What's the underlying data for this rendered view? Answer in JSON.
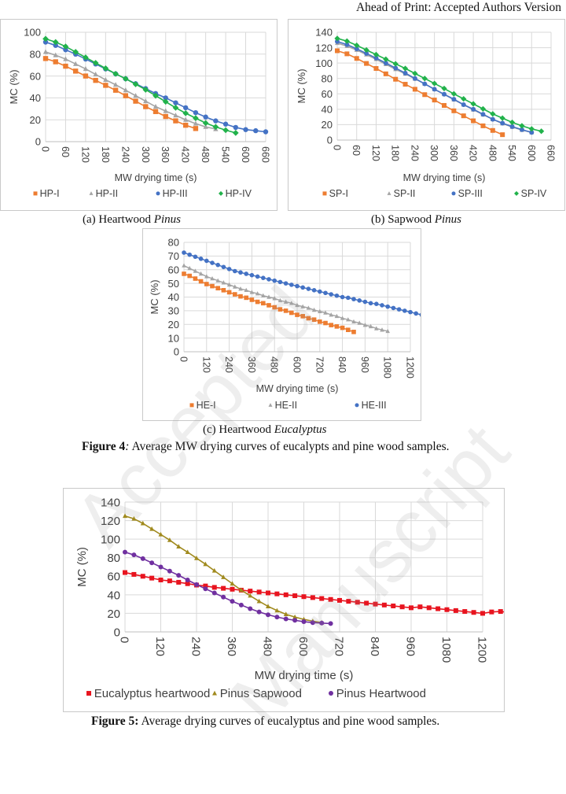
{
  "header": {
    "note": "Ahead of Print: Accepted Authors Version"
  },
  "watermark": {
    "text": "Accepted Manuscript"
  },
  "figure4": {
    "caption_label": "Figure 4",
    "caption_sep": ":",
    "caption_text": " Average MW drying curves of eucalypts and pine wood samples.",
    "subcaptions": [
      {
        "prefix": "(a) Heartwood ",
        "italic": "Pinus"
      },
      {
        "prefix": "(b) Sapwood ",
        "italic": "Pinus"
      },
      {
        "prefix": "(c) Heartwood ",
        "italic": "Eucalyptus"
      }
    ]
  },
  "figure5": {
    "caption_label": "Figure 5:",
    "caption_text": " Average drying curves of eucalyptus and pine wood samples."
  },
  "chart_data": [
    {
      "id": "a",
      "type": "line",
      "title": "",
      "xlabel": "MW drying time (s)",
      "ylabel": "MC (%)",
      "xlim": [
        0,
        660
      ],
      "ylim": [
        0,
        100
      ],
      "xticks": [
        0,
        60,
        120,
        180,
        240,
        300,
        360,
        420,
        480,
        540,
        600,
        660
      ],
      "yticks": [
        0,
        20,
        40,
        60,
        80,
        100
      ],
      "x_step": 30,
      "grid": true,
      "legend": "bottom",
      "series": [
        {
          "name": "HP-I",
          "color": "#ed7d31",
          "marker": "square",
          "values": [
            76,
            73,
            69,
            64.5,
            60,
            56,
            51.5,
            47,
            42,
            37,
            32,
            27.5,
            23,
            19,
            15,
            12
          ]
        },
        {
          "name": "HP-II",
          "color": "#a5a5a5",
          "marker": "triangle",
          "values": [
            82,
            79,
            75.5,
            71,
            66.5,
            61.5,
            56.5,
            52,
            47,
            42,
            37,
            32,
            28,
            24,
            20,
            16.5,
            13.5,
            11.5
          ]
        },
        {
          "name": "HP-III",
          "color": "#4472c4",
          "marker": "circle",
          "values": [
            91,
            88,
            84,
            80,
            75.5,
            71,
            66.5,
            62,
            57.5,
            53,
            48.5,
            44,
            40,
            35.5,
            31,
            26.5,
            22.5,
            19,
            16,
            13,
            11,
            10,
            9
          ]
        },
        {
          "name": "HP-IV",
          "color": "#21b24b",
          "marker": "diamond",
          "values": [
            94,
            91,
            87,
            82,
            77,
            72,
            67,
            62,
            57.5,
            52.5,
            47.5,
            42,
            36.5,
            31,
            26,
            21.5,
            17,
            13.5,
            10.5,
            8
          ]
        }
      ]
    },
    {
      "id": "b",
      "type": "line",
      "title": "",
      "xlabel": "MW drying time (s)",
      "ylabel": "MC (%)",
      "xlim": [
        0,
        660
      ],
      "ylim": [
        0,
        140
      ],
      "xticks": [
        0,
        60,
        120,
        180,
        240,
        300,
        360,
        420,
        480,
        540,
        600,
        660
      ],
      "yticks": [
        0,
        20,
        40,
        60,
        80,
        100,
        120,
        140
      ],
      "x_step": 30,
      "grid": true,
      "legend": "bottom",
      "series": [
        {
          "name": "SP-I",
          "color": "#ed7d31",
          "marker": "square",
          "values": [
            116,
            112,
            106,
            99.5,
            93,
            86,
            79,
            72.5,
            66,
            59,
            52,
            45,
            38,
            31.5,
            25,
            18.5,
            12.5,
            7
          ]
        },
        {
          "name": "SP-II",
          "color": "#a5a5a5",
          "marker": "triangle",
          "values": [
            126,
            122,
            117,
            111,
            105,
            98.5,
            92,
            86,
            79.5,
            73,
            66,
            59.5,
            52.5,
            46,
            39.5,
            33,
            27,
            21.5,
            17,
            13,
            10
          ]
        },
        {
          "name": "SP-III",
          "color": "#4472c4",
          "marker": "circle",
          "values": [
            128,
            124,
            118.5,
            112.5,
            106.5,
            100,
            93.5,
            87,
            80,
            73,
            66,
            59.5,
            53,
            46,
            40,
            33.5,
            27,
            22,
            17.5,
            13.5,
            10
          ]
        },
        {
          "name": "SP-IV",
          "color": "#21b24b",
          "marker": "diamond",
          "values": [
            132,
            128.5,
            123,
            117,
            111,
            105,
            99,
            93,
            86.5,
            80,
            73.5,
            67,
            60,
            53.5,
            47,
            40.5,
            34,
            28.5,
            23,
            18.5,
            14.5,
            11.5
          ]
        }
      ]
    },
    {
      "id": "c",
      "type": "line",
      "title": "",
      "xlabel": "MW drying time (s)",
      "ylabel": "MC (%)",
      "xlim": [
        0,
        1200
      ],
      "ylim": [
        0,
        80
      ],
      "xticks": [
        0,
        120,
        240,
        360,
        480,
        600,
        720,
        840,
        960,
        1080,
        1200
      ],
      "yticks": [
        0,
        10,
        20,
        30,
        40,
        50,
        60,
        70,
        80
      ],
      "x_step": 30,
      "grid": true,
      "legend": "bottom",
      "series": [
        {
          "name": "HE-I",
          "color": "#ed7d31",
          "marker": "square",
          "values": [
            57,
            55.5,
            53.5,
            51.5,
            49.5,
            48,
            46.5,
            45,
            43.5,
            42,
            40.5,
            39.5,
            38,
            36.5,
            35.5,
            34,
            32.5,
            31,
            30,
            28.5,
            27,
            26,
            24.5,
            23.5,
            22,
            21,
            19.5,
            18.5,
            17.5,
            16,
            14.5
          ]
        },
        {
          "name": "HE-II",
          "color": "#a5a5a5",
          "marker": "triangle",
          "values": [
            63,
            61,
            59,
            57,
            55,
            53.5,
            52,
            50.5,
            49,
            47.5,
            46,
            45,
            43.5,
            42.5,
            41,
            40,
            39,
            37.5,
            36.5,
            35.5,
            34,
            33,
            32,
            30.5,
            29.5,
            28.5,
            27,
            26,
            24.5,
            23.5,
            22,
            21,
            19.5,
            18.5,
            17,
            16,
            15
          ]
        },
        {
          "name": "HE-III",
          "color": "#4472c4",
          "marker": "circle",
          "values": [
            72.5,
            71,
            69.5,
            68,
            66.5,
            65,
            63.5,
            62,
            60.5,
            59,
            58,
            57,
            56,
            55,
            54,
            53,
            52,
            51,
            50,
            49,
            48,
            47,
            46,
            45,
            44,
            43,
            42,
            41,
            40,
            39.5,
            38.5,
            37.5,
            36.5,
            35.5,
            35,
            34,
            33,
            32,
            31,
            30,
            29,
            28,
            27,
            26,
            25,
            24,
            23,
            22,
            21,
            20,
            19,
            18.5
          ]
        }
      ]
    },
    {
      "id": "fig5",
      "type": "line",
      "title": "",
      "xlabel": "MW drying time (s)",
      "ylabel": "MC (%)",
      "xlim": [
        0,
        1200
      ],
      "ylim": [
        0,
        140
      ],
      "xticks": [
        0,
        120,
        240,
        360,
        480,
        600,
        720,
        840,
        960,
        1080,
        1200
      ],
      "yticks": [
        0,
        20,
        40,
        60,
        80,
        100,
        120,
        140
      ],
      "x_step": 30,
      "grid": true,
      "legend": "bottom",
      "series": [
        {
          "name": "Eucalyptus heartwood",
          "color": "#e8141f",
          "marker": "square",
          "values": [
            64,
            62,
            60,
            58,
            56,
            55,
            53.5,
            52,
            50.5,
            49.5,
            48,
            47,
            46,
            45,
            44,
            43,
            42,
            41,
            40,
            39,
            38,
            37,
            36,
            35,
            34,
            33,
            32,
            31,
            30,
            29,
            28,
            27,
            26,
            27,
            26,
            25,
            24,
            23,
            22,
            21,
            20,
            21.5,
            22,
            21,
            20.5,
            20,
            19.5,
            19,
            20.5,
            21,
            20,
            19.5,
            19,
            18.5,
            18,
            18.5,
            18,
            17.5,
            18,
            19,
            19,
            18.5,
            18,
            17.5,
            17,
            18,
            18.5,
            18,
            17.5,
            17,
            18
          ]
        },
        {
          "name": "Pinus Sapwood",
          "color": "#a08a1e",
          "marker": "triangle",
          "values": [
            125,
            122,
            117,
            111,
            105,
            99,
            92,
            86,
            79.5,
            73,
            66,
            59,
            52,
            45,
            39,
            33,
            27.5,
            23,
            19,
            16,
            13.5,
            11.5,
            10
          ]
        },
        {
          "name": "Pinus Heartwood",
          "color": "#7030a0",
          "marker": "circle",
          "values": [
            86,
            83,
            79,
            74.5,
            70,
            65.5,
            61,
            56,
            51,
            46.5,
            42,
            37.5,
            33,
            29,
            25,
            21.5,
            18.5,
            16,
            14,
            12.5,
            11,
            10,
            9.5,
            9
          ]
        }
      ]
    }
  ]
}
